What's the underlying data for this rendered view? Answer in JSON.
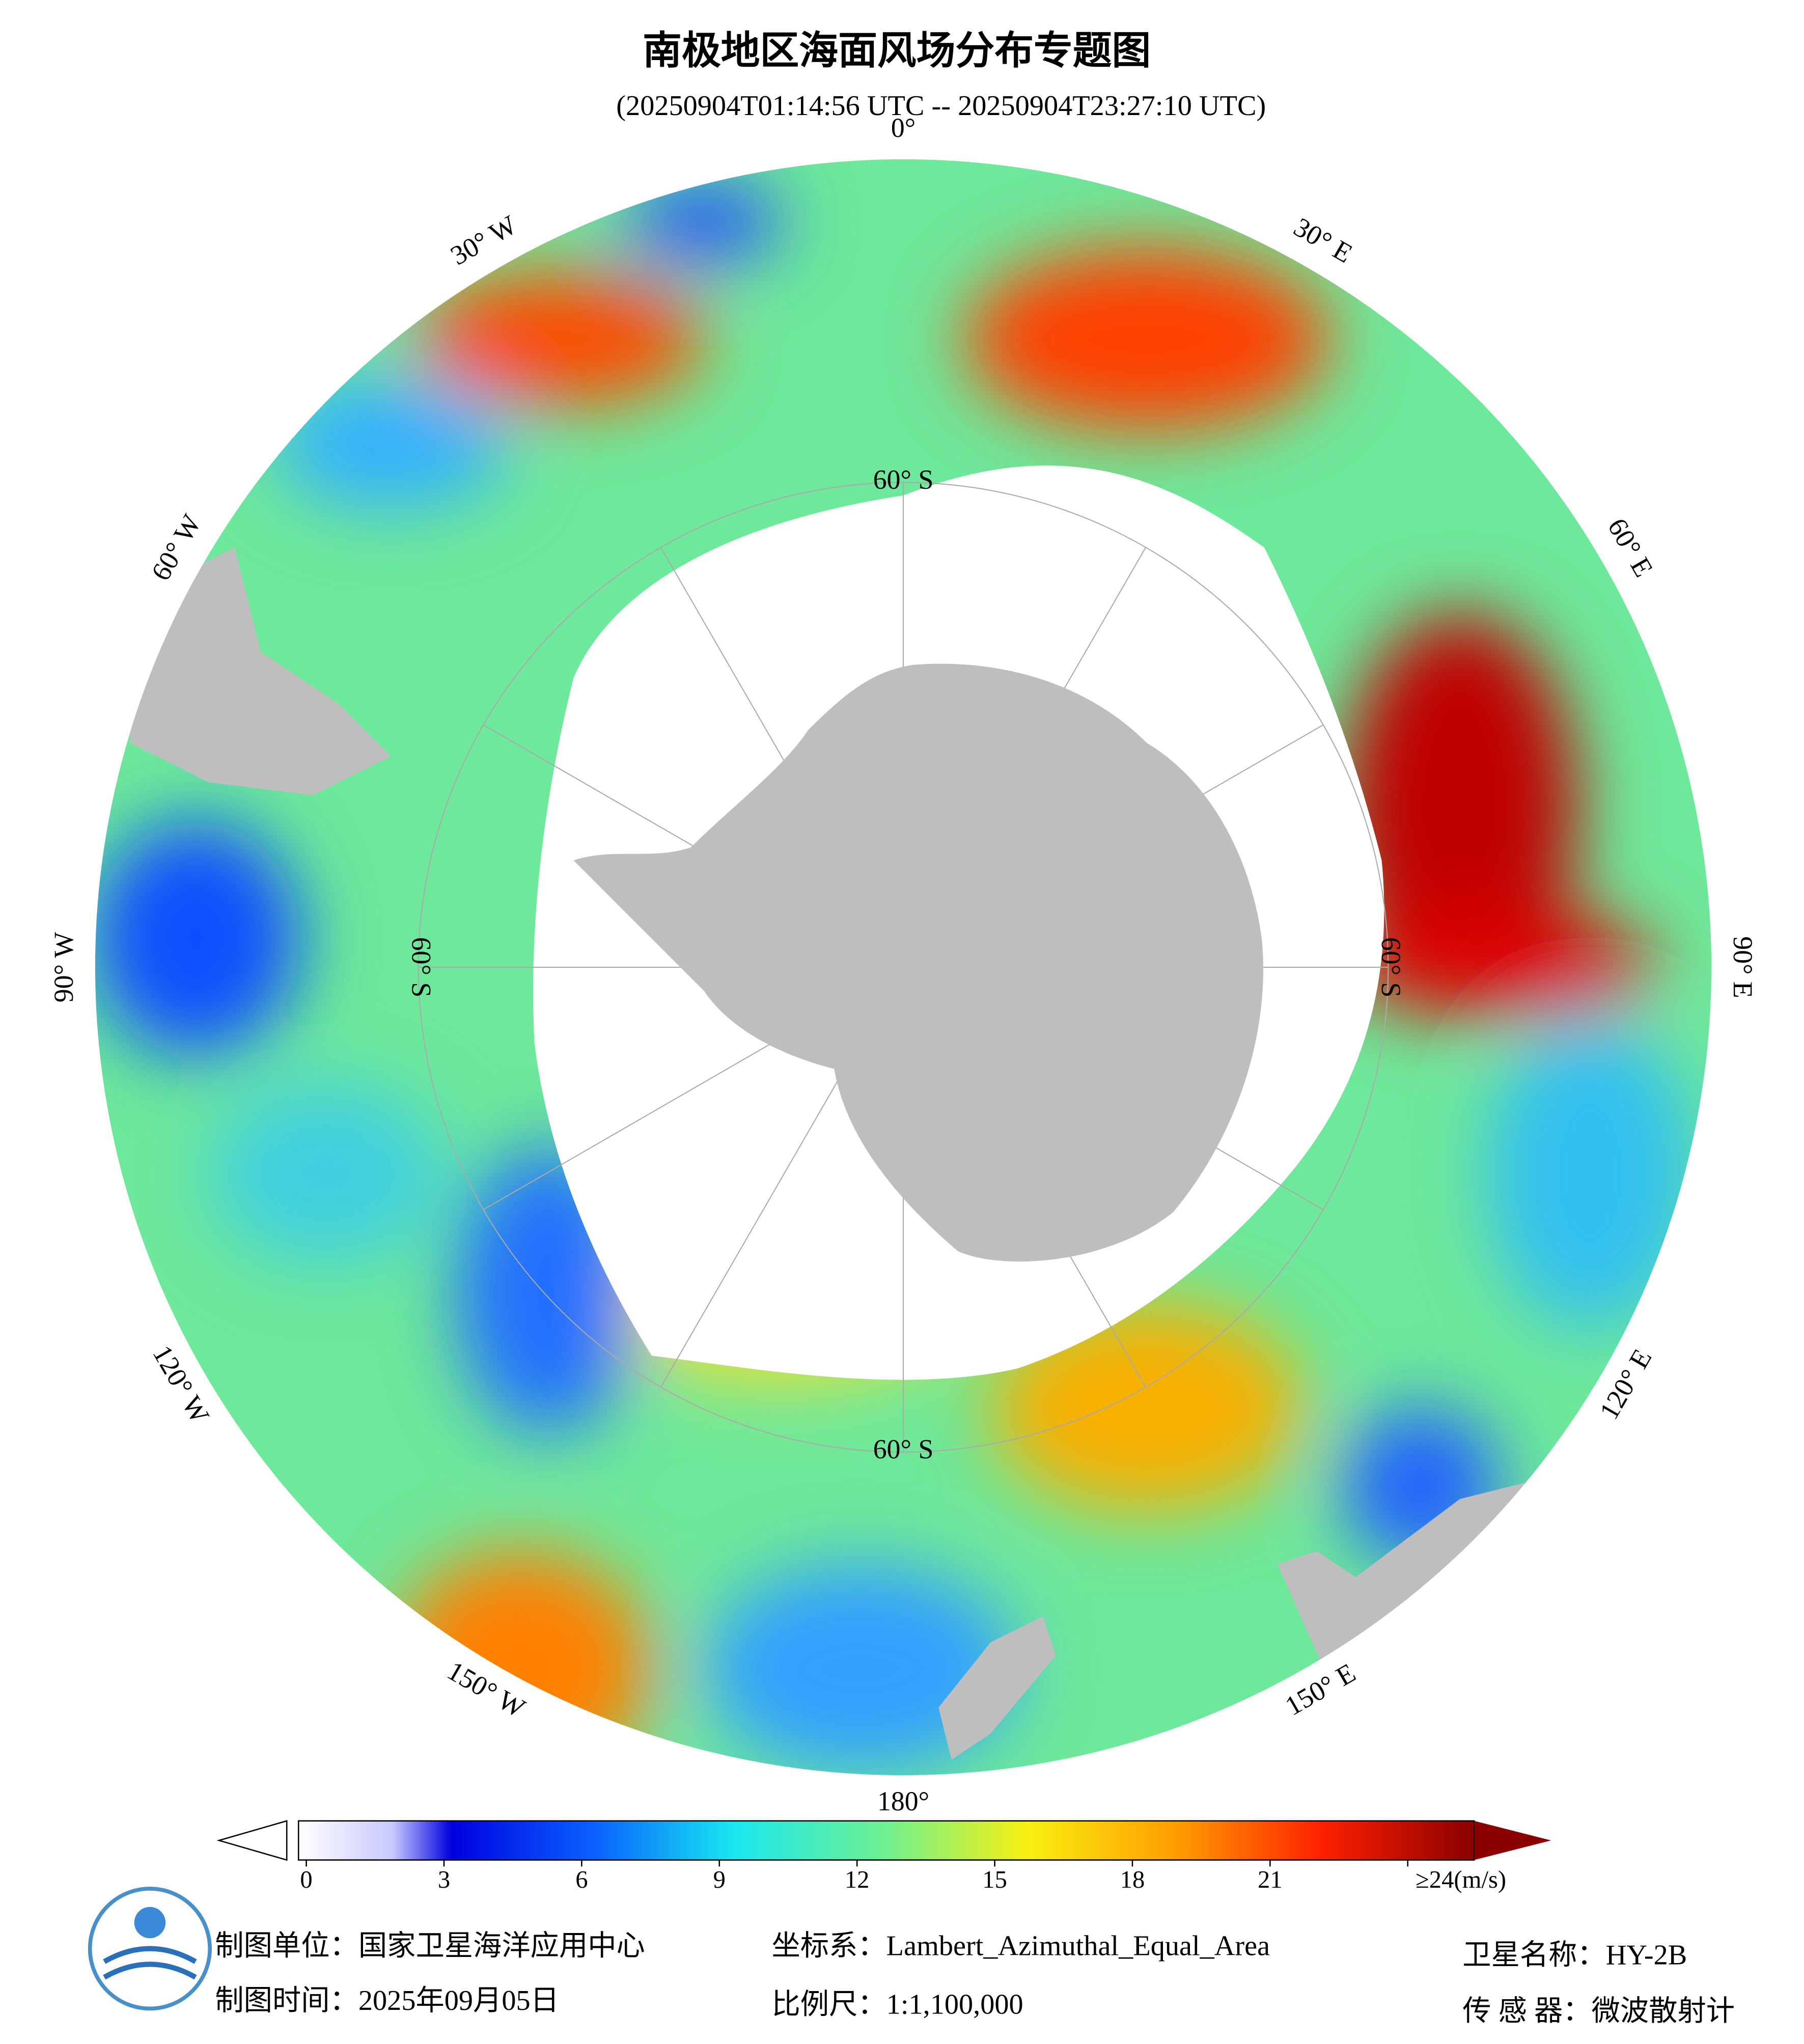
{
  "header": {
    "title": "南极地区海面风场分布专题图",
    "subtitle": "(20250904T01:14:56 UTC -- 20250904T23:27:10 UTC)"
  },
  "map": {
    "lon_labels": [
      "0°",
      "30° E",
      "60° E",
      "90° E",
      "120° E",
      "150° E",
      "180°",
      "150° W",
      "120° W",
      "90° W",
      "60° W",
      "30° W"
    ],
    "lat_labels": [
      "60° S",
      "60° S",
      "60° S",
      "60° S"
    ]
  },
  "colorbar": {
    "clim": [
      0,
      24
    ],
    "ticks": [
      0,
      3,
      6,
      9,
      12,
      15,
      18,
      21,
      {
        "value": 24,
        "label": "≥24(m/s)"
      }
    ]
  },
  "footer": {
    "unit": "制图单位：国家卫星海洋应用中心",
    "date": "制图时间：2025年09月05日",
    "crs": "坐标系：Lambert_Azimuthal_Equal_Area",
    "scale": "比例尺：1:1,100,000",
    "satellite": "卫星名称：HY-2B",
    "sensor": "传 感 器：微波散射计"
  }
}
